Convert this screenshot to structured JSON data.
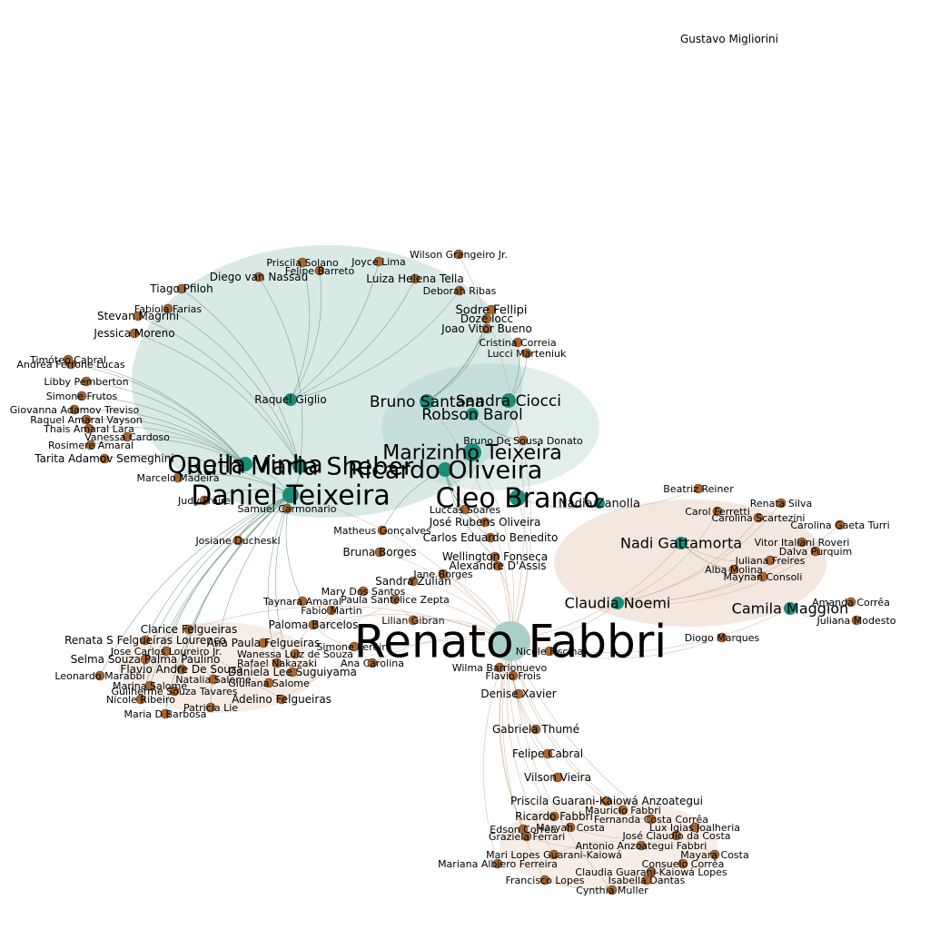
{
  "colors": {
    "background": "#ffffff",
    "node_peripheral": "#a8652e",
    "node_core": "#1a8c7a",
    "node_hub_light": "#a9cfc8",
    "edge_green": "#5e8d78",
    "edge_tan": "#c9a98f"
  },
  "graph": {
    "nodes": [
      {
        "label": "Renato Fabbri",
        "kind": "hub"
      },
      {
        "label": "Daniel Teixeira",
        "kind": "core"
      },
      {
        "label": "Cleo Branco",
        "kind": "core"
      },
      {
        "label": "Ruth Maria Sheber",
        "kind": "core"
      },
      {
        "label": "Queila Vinha",
        "kind": "core"
      },
      {
        "label": "Ricardo Oliveira",
        "kind": "core"
      },
      {
        "label": "Marizinho Teixeira",
        "kind": "core"
      },
      {
        "label": "Raquel Giglio",
        "kind": "core"
      },
      {
        "label": "Bruno Santana",
        "kind": "core"
      },
      {
        "label": "Sandra Ciocci",
        "kind": "core"
      },
      {
        "label": "Robson Barol",
        "kind": "core"
      },
      {
        "label": "Claudia Noemi",
        "kind": "core"
      },
      {
        "label": "Nadi Gattamorta",
        "kind": "core"
      },
      {
        "label": "Camila Maggion",
        "kind": "core"
      },
      {
        "label": "Nadia Zanolla",
        "kind": "core"
      },
      {
        "label": "Gustavo Migliorini",
        "kind": "leaf"
      },
      {
        "label": "Wilson Grangeiro Jr.",
        "kind": "leaf"
      },
      {
        "label": "Priscila Solano",
        "kind": "leaf"
      },
      {
        "label": "Joyce Lima",
        "kind": "leaf"
      },
      {
        "label": "Felipe Barreto",
        "kind": "leaf"
      },
      {
        "label": "Diego van Nassau",
        "kind": "leaf"
      },
      {
        "label": "Luiza Helena Tella",
        "kind": "leaf"
      },
      {
        "label": "Deborah Ribas",
        "kind": "leaf"
      },
      {
        "label": "Tiago Pfiloh",
        "kind": "leaf"
      },
      {
        "label": "Fabíola Farias",
        "kind": "leaf"
      },
      {
        "label": "Stevan Magrini",
        "kind": "leaf"
      },
      {
        "label": "Jessica Moreno",
        "kind": "leaf"
      },
      {
        "label": "Sodre Fellipi",
        "kind": "leaf"
      },
      {
        "label": "Doze Iocc",
        "kind": "leaf"
      },
      {
        "label": "Joao Vitor Bueno",
        "kind": "leaf"
      },
      {
        "label": "Cristina Correia",
        "kind": "leaf"
      },
      {
        "label": "Lucci Marteniuk",
        "kind": "leaf"
      },
      {
        "label": "Andrea Ferrone Lucas",
        "kind": "leaf"
      },
      {
        "label": "Timóteo Cabral",
        "kind": "leaf"
      },
      {
        "label": "Libby Pemberton",
        "kind": "leaf"
      },
      {
        "label": "Simone Frutos",
        "kind": "leaf"
      },
      {
        "label": "Giovanna Adamov Treviso",
        "kind": "leaf"
      },
      {
        "label": "Raquel Amaral Vayson",
        "kind": "leaf"
      },
      {
        "label": "Thais Amaral Lara",
        "kind": "leaf"
      },
      {
        "label": "Vanessa Cardoso",
        "kind": "leaf"
      },
      {
        "label": "Rosimere Amaral",
        "kind": "leaf"
      },
      {
        "label": "Tarita Adamov Semeghini",
        "kind": "leaf"
      },
      {
        "label": "Marcelo Madeira",
        "kind": "leaf"
      },
      {
        "label": "Judy Freire",
        "kind": "leaf"
      },
      {
        "label": "Samuel Carmonario",
        "kind": "leaf"
      },
      {
        "label": "Josiane Ducheski",
        "kind": "leaf"
      },
      {
        "label": "Matheus Gonçalves",
        "kind": "leaf"
      },
      {
        "label": "Bruna Borges",
        "kind": "leaf"
      },
      {
        "label": "Bruno De Sousa Donato",
        "kind": "leaf"
      },
      {
        "label": "Luccas Soares",
        "kind": "leaf"
      },
      {
        "label": "José Rubens Oliveira",
        "kind": "leaf"
      },
      {
        "label": "Carlos Eduardo Benedito",
        "kind": "leaf"
      },
      {
        "label": "Wellington Fonseca",
        "kind": "leaf"
      },
      {
        "label": "Alexandre D'Assis",
        "kind": "leaf"
      },
      {
        "label": "Jane Borges",
        "kind": "leaf"
      },
      {
        "label": "Sandra Zulian",
        "kind": "leaf"
      },
      {
        "label": "Mary Dos Santos",
        "kind": "leaf"
      },
      {
        "label": "Paula Santelice Zepta",
        "kind": "leaf"
      },
      {
        "label": "Taynara Amaral",
        "kind": "leaf"
      },
      {
        "label": "Paloma Barcelos",
        "kind": "leaf"
      },
      {
        "label": "Clarice Felgueiras",
        "kind": "leaf"
      },
      {
        "label": "Renata S Felgueiras Lourenço",
        "kind": "leaf"
      },
      {
        "label": "Jose Carlos Loureiro Jr.",
        "kind": "leaf"
      },
      {
        "label": "Selma Souza Palma Paulino",
        "kind": "leaf"
      },
      {
        "label": "Flavio Andre De Souza",
        "kind": "leaf"
      },
      {
        "label": "Leonardo Marabbi",
        "kind": "leaf"
      },
      {
        "label": "Marina Salome",
        "kind": "leaf"
      },
      {
        "label": "Guilherme Souza Tavares",
        "kind": "leaf"
      },
      {
        "label": "Nicole Ribeiro",
        "kind": "leaf"
      },
      {
        "label": "Adelino Felgueiras",
        "kind": "leaf"
      },
      {
        "label": "Patricia Lie",
        "kind": "leaf"
      },
      {
        "label": "Maria D Barbosa",
        "kind": "leaf"
      },
      {
        "label": "Daniela Lee Suguiyama",
        "kind": "leaf"
      },
      {
        "label": "Rafael Nakazaki",
        "kind": "leaf"
      },
      {
        "label": "Ana Carolina",
        "kind": "leaf"
      },
      {
        "label": "Wilma Barrionuevo",
        "kind": "leaf"
      },
      {
        "label": "Flavio Frois",
        "kind": "leaf"
      },
      {
        "label": "Denise Xavier",
        "kind": "leaf"
      },
      {
        "label": "Gabriela Thumé",
        "kind": "leaf"
      },
      {
        "label": "Felipe Cabral",
        "kind": "leaf"
      },
      {
        "label": "Vilson Vieira",
        "kind": "leaf"
      },
      {
        "label": "Priscila Guarani-Kaiowá Anzoategui",
        "kind": "leaf"
      },
      {
        "label": "Ricardo Fabbri",
        "kind": "leaf"
      },
      {
        "label": "Mauricio Fabbri",
        "kind": "leaf"
      },
      {
        "label": "Fernanda Costa Corrêa",
        "kind": "leaf"
      },
      {
        "label": "Edson Corrêa",
        "kind": "leaf"
      },
      {
        "label": "Maryah Costa",
        "kind": "leaf"
      },
      {
        "label": "Lux Igias Joalheria",
        "kind": "leaf"
      },
      {
        "label": "Graziela Ferrari",
        "kind": "leaf"
      },
      {
        "label": "José Claudio da Costa",
        "kind": "leaf"
      },
      {
        "label": "Antonio Anzoategui Fabbri",
        "kind": "leaf"
      },
      {
        "label": "Mari Lopes Guarani-Kaiowá",
        "kind": "leaf"
      },
      {
        "label": "Mayara Costa",
        "kind": "leaf"
      },
      {
        "label": "Mariana Albiero Ferreira",
        "kind": "leaf"
      },
      {
        "label": "Consuelo Corrêa",
        "kind": "leaf"
      },
      {
        "label": "Claudia Guarani-Kaiowá Lopes",
        "kind": "leaf"
      },
      {
        "label": "Francisco Lopes",
        "kind": "leaf"
      },
      {
        "label": "Isabella Dantas",
        "kind": "leaf"
      },
      {
        "label": "Cynthia Muller",
        "kind": "leaf"
      },
      {
        "label": "Beatriz Reiner",
        "kind": "leaf"
      },
      {
        "label": "Renata Silva",
        "kind": "leaf"
      },
      {
        "label": "Carol Ferretti",
        "kind": "leaf"
      },
      {
        "label": "Carolina Scartezini",
        "kind": "leaf"
      },
      {
        "label": "Carolina Gaeta Turri",
        "kind": "leaf"
      },
      {
        "label": "Vitor Italiani Roveri",
        "kind": "leaf"
      },
      {
        "label": "Dalva Purquim",
        "kind": "leaf"
      },
      {
        "label": "Juliana Freires",
        "kind": "leaf"
      },
      {
        "label": "Alba Molina",
        "kind": "leaf"
      },
      {
        "label": "Maynan Consoli",
        "kind": "leaf"
      },
      {
        "label": "Amanda Corrêa",
        "kind": "leaf"
      },
      {
        "label": "Juliana Modesto",
        "kind": "leaf"
      },
      {
        "label": "Diogo Marques",
        "kind": "leaf"
      },
      {
        "label": "Nicole Fiscina",
        "kind": "leaf"
      },
      {
        "label": "Ana Paula Felgueiras",
        "kind": "leaf"
      },
      {
        "label": "Wanessa Luiz de Souza",
        "kind": "leaf"
      },
      {
        "label": "Natalia Salome",
        "kind": "leaf"
      },
      {
        "label": "Giuliana Salome",
        "kind": "leaf"
      },
      {
        "label": "Fabio Martin",
        "kind": "leaf"
      },
      {
        "label": "Simone Pereira",
        "kind": "leaf"
      },
      {
        "label": "Lilian Gibran",
        "kind": "leaf"
      }
    ],
    "edges": [
      [
        "Renato Fabbri",
        "Daniel Teixeira"
      ],
      [
        "Renato Fabbri",
        "Cleo Branco"
      ],
      [
        "Renato Fabbri",
        "Ricardo Oliveira"
      ],
      [
        "Renato Fabbri",
        "Marizinho Teixeira"
      ],
      [
        "Renato Fabbri",
        "Wilma Barrionuevo"
      ],
      [
        "Renato Fabbri",
        "Denise Xavier"
      ],
      [
        "Renato Fabbri",
        "Gabriela Thumé"
      ],
      [
        "Renato Fabbri",
        "Felipe Cabral"
      ],
      [
        "Renato Fabbri",
        "Vilson Vieira"
      ],
      [
        "Renato Fabbri",
        "Priscila Guarani-Kaiowá Anzoategui"
      ],
      [
        "Renato Fabbri",
        "Ricardo Fabbri"
      ],
      [
        "Renato Fabbri",
        "Mauricio Fabbri"
      ],
      [
        "Renato Fabbri",
        "Edson Corrêa"
      ],
      [
        "Renato Fabbri",
        "Graziela Ferrari"
      ],
      [
        "Renato Fabbri",
        "Mari Lopes Guarani-Kaiowá"
      ],
      [
        "Renato Fabbri",
        "Mariana Albiero Ferreira"
      ],
      [
        "Renato Fabbri",
        "Francisco Lopes"
      ],
      [
        "Renato Fabbri",
        "Cynthia Muller"
      ],
      [
        "Renato Fabbri",
        "Mayara Costa"
      ],
      [
        "Renato Fabbri",
        "Claudia Noemi"
      ],
      [
        "Renato Fabbri",
        "Camila Maggion"
      ],
      [
        "Renato Fabbri",
        "Nadi Gattamorta"
      ],
      [
        "Renato Fabbri",
        "Paloma Barcelos"
      ],
      [
        "Renato Fabbri",
        "Clarice Felgueiras"
      ],
      [
        "Renato Fabbri",
        "Adelino Felgueiras"
      ],
      [
        "Renato Fabbri",
        "Bruna Borges"
      ],
      [
        "Renato Fabbri",
        "Sandra Zulian"
      ],
      [
        "Renato Fabbri",
        "Mary Dos Santos"
      ],
      [
        "Renato Fabbri",
        "Ana Carolina"
      ],
      [
        "Renato Fabbri",
        "Nicole Fiscina"
      ],
      [
        "Renato Fabbri",
        "Diogo Marques"
      ],
      [
        "Renato Fabbri",
        "Wilson Grangeiro Jr."
      ],
      [
        "Renato Fabbri",
        "Sandra Ciocci"
      ],
      [
        "Renato Fabbri",
        "Bruno Santana"
      ],
      [
        "Renato Fabbri",
        "Alexandre D'Assis"
      ],
      [
        "Renato Fabbri",
        "Jane Borges"
      ],
      [
        "Daniel Teixeira",
        "Ruth Maria Sheber"
      ],
      [
        "Daniel Teixeira",
        "Queila Vinha"
      ],
      [
        "Daniel Teixeira",
        "Samuel Carmonario"
      ],
      [
        "Daniel Teixeira",
        "Josiane Ducheski"
      ],
      [
        "Daniel Teixeira",
        "Taynara Amaral"
      ],
      [
        "Daniel Teixeira",
        "Renata S Felgueiras Lourenço"
      ],
      [
        "Daniel Teixeira",
        "Selma Souza Palma Paulino"
      ],
      [
        "Daniel Teixeira",
        "Leonardo Marabbi"
      ],
      [
        "Daniel Teixeira",
        "Marina Salome"
      ],
      [
        "Daniel Teixeira",
        "Nicole Ribeiro"
      ],
      [
        "Daniel Teixeira",
        "Patricia Lie"
      ],
      [
        "Daniel Teixeira",
        "Maria D Barbosa"
      ],
      [
        "Daniel Teixeira",
        "Jose Carlos Loureiro Jr."
      ],
      [
        "Daniel Teixeira",
        "Flavio Andre De Souza"
      ],
      [
        "Daniel Teixeira",
        "Guilherme Souza Tavares"
      ],
      [
        "Daniel Teixeira",
        "Daniela Lee Suguiyama"
      ],
      [
        "Daniel Teixeira",
        "Rafael Nakazaki"
      ],
      [
        "Daniel Teixeira",
        "Tarita Adamov Semeghini"
      ],
      [
        "Daniel Teixeira",
        "Marcelo Madeira"
      ],
      [
        "Daniel Teixeira",
        "Judy Freire"
      ],
      [
        "Queila Vinha",
        "Rosimere Amaral"
      ],
      [
        "Queila Vinha",
        "Thais Amaral Lara"
      ],
      [
        "Queila Vinha",
        "Raquel Amaral Vayson"
      ],
      [
        "Queila Vinha",
        "Giovanna Adamov Treviso"
      ],
      [
        "Queila Vinha",
        "Simone Frutos"
      ],
      [
        "Queila Vinha",
        "Libby Pemberton"
      ],
      [
        "Queila Vinha",
        "Andrea Ferrone Lucas"
      ],
      [
        "Queila Vinha",
        "Timóteo Cabral"
      ],
      [
        "Queila Vinha",
        "Vanessa Cardoso"
      ],
      [
        "Ruth Maria Sheber",
        "Jessica Moreno"
      ],
      [
        "Ruth Maria Sheber",
        "Stevan Magrini"
      ],
      [
        "Ruth Maria Sheber",
        "Fabíola Farias"
      ],
      [
        "Ruth Maria Sheber",
        "Tiago Pfiloh"
      ],
      [
        "Ruth Maria Sheber",
        "Diego van Nassau"
      ],
      [
        "Raquel Giglio",
        "Priscila Solano"
      ],
      [
        "Raquel Giglio",
        "Joyce Lima"
      ],
      [
        "Raquel Giglio",
        "Felipe Barreto"
      ],
      [
        "Raquel Giglio",
        "Luiza Helena Tella"
      ],
      [
        "Raquel Giglio",
        "Deborah Ribas"
      ],
      [
        "Bruno Santana",
        "Sodre Fellipi"
      ],
      [
        "Bruno Santana",
        "Doze Iocc"
      ],
      [
        "Bruno Santana",
        "Joao Vitor Bueno"
      ],
      [
        "Sandra Ciocci",
        "Cristina Correia"
      ],
      [
        "Sandra Ciocci",
        "Lucci Marteniuk"
      ],
      [
        "Robson Barol",
        "Bruno De Sousa Donato"
      ],
      [
        "Ricardo Oliveira",
        "Luccas Soares"
      ],
      [
        "Ricardo Oliveira",
        "José Rubens Oliveira"
      ],
      [
        "Ricardo Oliveira",
        "Carlos Eduardo Benedito"
      ],
      [
        "Ricardo Oliveira",
        "Wellington Fonseca"
      ],
      [
        "Ricardo Oliveira",
        "Matheus Gonçalves"
      ],
      [
        "Cleo Branco",
        "Nadia Zanolla"
      ],
      [
        "Cleo Branco",
        "Beatriz Reiner"
      ],
      [
        "Claudia Noemi",
        "Renata Silva"
      ],
      [
        "Claudia Noemi",
        "Carol Ferretti"
      ],
      [
        "Claudia Noemi",
        "Carolina Scartezini"
      ],
      [
        "Claudia Noemi",
        "Carolina Gaeta Turri"
      ],
      [
        "Claudia Noemi",
        "Vitor Italiani Roveri"
      ],
      [
        "Claudia Noemi",
        "Dalva Purquim"
      ],
      [
        "Nadi Gattamorta",
        "Juliana Freires"
      ],
      [
        "Nadi Gattamorta",
        "Alba Molina"
      ],
      [
        "Nadi Gattamorta",
        "Maynan Consoli"
      ],
      [
        "Camila Maggion",
        "Amanda Corrêa"
      ],
      [
        "Camila Maggion",
        "Juliana Modesto"
      ],
      [
        "Paloma Barcelos",
        "Paula Santelice Zepta"
      ],
      [
        "Paloma Barcelos",
        "Ana Paula Felgueiras"
      ],
      [
        "Paloma Barcelos",
        "Wanessa Luiz de Souza"
      ],
      [
        "Paloma Barcelos",
        "Fabio Martin"
      ],
      [
        "Paloma Barcelos",
        "Simone Pereira"
      ],
      [
        "Clarice Felgueiras",
        "Natalia Salome"
      ],
      [
        "Clarice Felgueiras",
        "Giuliana Salome"
      ],
      [
        "Adelino Felgueiras",
        "Natalia Salome"
      ],
      [
        "Mauricio Fabbri",
        "Fernanda Costa Corrêa"
      ],
      [
        "Maryah Costa",
        "Lux Igias Joalheria"
      ],
      [
        "Graziela Ferrari",
        "José Claudio da Costa"
      ],
      [
        "Antonio Anzoategui Fabbri",
        "Mari Lopes Guarani-Kaiowá"
      ],
      [
        "Consuelo Corrêa",
        "Claudia Guarani-Kaiowá Lopes"
      ],
      [
        "Francisco Lopes",
        "Isabella Dantas"
      ],
      [
        "Wilma Barrionuevo",
        "Flavio Frois"
      ],
      [
        "Renato Fabbri",
        "Lilian Gibran"
      ],
      [
        "Lilian Gibran",
        "Mary Dos Santos"
      ]
    ]
  }
}
